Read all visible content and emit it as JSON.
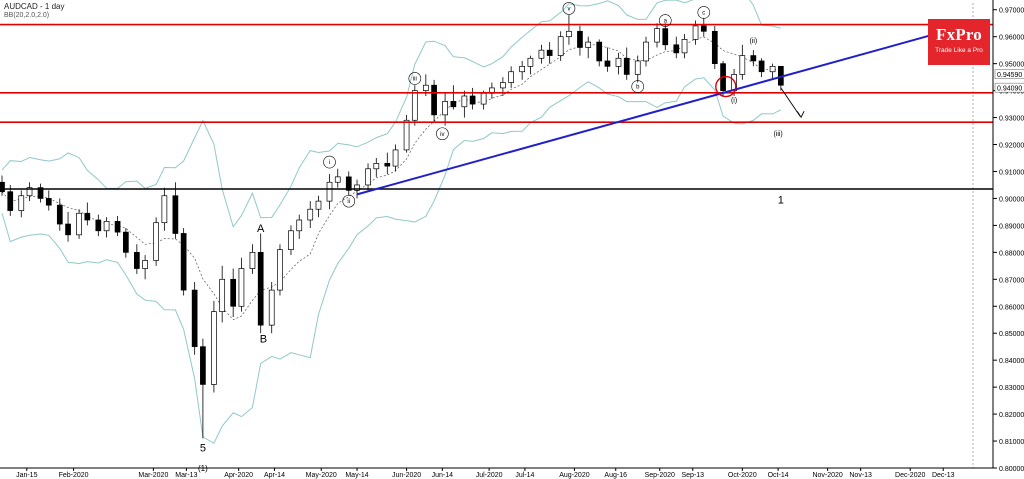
{
  "chart_data": {
    "type": "candlestick",
    "title": "AUDCAD - 1 day",
    "indicator": "BB(20,2.0,2.0)",
    "symbol": "AUDCAD",
    "timeframe": "1 day",
    "ylim": [
      0.8,
      0.9725
    ],
    "yticks": [
      "0.97000",
      "0.96000",
      "0.95000",
      "0.94000",
      "0.93000",
      "0.92000",
      "0.91000",
      "0.90000",
      "0.89000",
      "0.88000",
      "0.87000",
      "0.86000",
      "0.85000",
      "0.84000",
      "0.83000",
      "0.82000",
      "0.81000",
      "0.80000"
    ],
    "xticks": [
      "Jan-15",
      "Feb-2020",
      "Mar-2020",
      "Mar-13",
      "Apr-2020",
      "Apr-14",
      "May-2020",
      "May-14",
      "Jun-2020",
      "Jun-14",
      "Jul-2020",
      "Jul-14",
      "Aug-2020",
      "Aug-16",
      "Sep-2020",
      "Sep-13",
      "Oct-2020",
      "Oct-14",
      "Nov-2020",
      "Nov-13",
      "Dec-2020",
      "Dec-13"
    ],
    "price_labels": {
      "current": "0.94590",
      "level": "0.94090"
    },
    "horizontal_levels": [
      {
        "value": 0.9645,
        "color": "#e00000"
      },
      {
        "value": 0.9392,
        "color": "#e00000"
      },
      {
        "value": 0.9283,
        "color": "#e00000"
      },
      {
        "value": 0.9035,
        "color": "#000000"
      }
    ],
    "trendline": {
      "from": {
        "date": "2020-05-14",
        "value": 0.9015
      },
      "to": {
        "date": "2020-12-13",
        "value": 0.9618
      },
      "color": "#2020c8"
    },
    "annotations": [
      "A",
      "B",
      "5",
      "(1)",
      "i",
      "ii",
      "iii",
      "iv",
      "v",
      "a",
      "b",
      "c",
      "(i)",
      "(ii)",
      "(iii)",
      "1"
    ],
    "colors": {
      "up": "#ffffff",
      "down": "#000000",
      "bands": "#90c8c8",
      "mid": "#555555"
    },
    "candles": [
      {
        "date": "2020-01-06",
        "open": 0.906,
        "high": 0.9085,
        "low": 0.901,
        "close": 0.9025
      },
      {
        "date": "2020-01-09",
        "open": 0.9025,
        "high": 0.905,
        "low": 0.8935,
        "close": 0.8955
      },
      {
        "date": "2020-01-13",
        "open": 0.8955,
        "high": 0.903,
        "low": 0.893,
        "close": 0.901
      },
      {
        "date": "2020-01-16",
        "open": 0.901,
        "high": 0.906,
        "low": 0.899,
        "close": 0.904
      },
      {
        "date": "2020-01-20",
        "open": 0.904,
        "high": 0.9055,
        "low": 0.8985,
        "close": 0.9
      },
      {
        "date": "2020-01-23",
        "open": 0.9,
        "high": 0.903,
        "low": 0.8955,
        "close": 0.8975
      },
      {
        "date": "2020-01-27",
        "open": 0.8975,
        "high": 0.9,
        "low": 0.888,
        "close": 0.8905
      },
      {
        "date": "2020-01-30",
        "open": 0.8905,
        "high": 0.895,
        "low": 0.884,
        "close": 0.8865
      },
      {
        "date": "2020-02-03",
        "open": 0.8865,
        "high": 0.896,
        "low": 0.885,
        "close": 0.8945
      },
      {
        "date": "2020-02-06",
        "open": 0.8945,
        "high": 0.8985,
        "low": 0.89,
        "close": 0.892
      },
      {
        "date": "2020-02-10",
        "open": 0.892,
        "high": 0.894,
        "low": 0.886,
        "close": 0.888
      },
      {
        "date": "2020-02-13",
        "open": 0.888,
        "high": 0.893,
        "low": 0.8855,
        "close": 0.8915
      },
      {
        "date": "2020-02-17",
        "open": 0.8915,
        "high": 0.8935,
        "low": 0.886,
        "close": 0.8875
      },
      {
        "date": "2020-02-20",
        "open": 0.8875,
        "high": 0.889,
        "low": 0.878,
        "close": 0.88
      },
      {
        "date": "2020-02-24",
        "open": 0.88,
        "high": 0.883,
        "low": 0.872,
        "close": 0.874
      },
      {
        "date": "2020-02-27",
        "open": 0.874,
        "high": 0.879,
        "low": 0.87,
        "close": 0.877
      },
      {
        "date": "2020-03-02",
        "open": 0.877,
        "high": 0.893,
        "low": 0.875,
        "close": 0.891
      },
      {
        "date": "2020-03-05",
        "open": 0.891,
        "high": 0.904,
        "low": 0.888,
        "close": 0.901
      },
      {
        "date": "2020-03-09",
        "open": 0.901,
        "high": 0.906,
        "low": 0.885,
        "close": 0.887
      },
      {
        "date": "2020-03-12",
        "open": 0.887,
        "high": 0.889,
        "low": 0.864,
        "close": 0.866
      },
      {
        "date": "2020-03-16",
        "open": 0.866,
        "high": 0.869,
        "low": 0.842,
        "close": 0.845
      },
      {
        "date": "2020-03-19",
        "open": 0.845,
        "high": 0.848,
        "low": 0.811,
        "close": 0.831
      },
      {
        "date": "2020-03-23",
        "open": 0.831,
        "high": 0.862,
        "low": 0.828,
        "close": 0.858
      },
      {
        "date": "2020-03-26",
        "open": 0.858,
        "high": 0.875,
        "low": 0.854,
        "close": 0.87
      },
      {
        "date": "2020-03-30",
        "open": 0.87,
        "high": 0.874,
        "low": 0.856,
        "close": 0.86
      },
      {
        "date": "2020-04-02",
        "open": 0.86,
        "high": 0.878,
        "low": 0.858,
        "close": 0.874
      },
      {
        "date": "2020-04-06",
        "open": 0.874,
        "high": 0.883,
        "low": 0.872,
        "close": 0.88
      },
      {
        "date": "2020-04-09",
        "open": 0.88,
        "high": 0.887,
        "low": 0.85,
        "close": 0.853
      },
      {
        "date": "2020-04-13",
        "open": 0.853,
        "high": 0.869,
        "low": 0.85,
        "close": 0.866
      },
      {
        "date": "2020-04-16",
        "open": 0.866,
        "high": 0.883,
        "low": 0.864,
        "close": 0.881
      },
      {
        "date": "2020-04-20",
        "open": 0.881,
        "high": 0.89,
        "low": 0.879,
        "close": 0.888
      },
      {
        "date": "2020-04-23",
        "open": 0.888,
        "high": 0.894,
        "low": 0.885,
        "close": 0.892
      },
      {
        "date": "2020-04-27",
        "open": 0.892,
        "high": 0.899,
        "low": 0.889,
        "close": 0.896
      },
      {
        "date": "2020-04-30",
        "open": 0.896,
        "high": 0.901,
        "low": 0.893,
        "close": 0.899
      },
      {
        "date": "2020-05-04",
        "open": 0.899,
        "high": 0.909,
        "low": 0.896,
        "close": 0.906
      },
      {
        "date": "2020-05-07",
        "open": 0.906,
        "high": 0.911,
        "low": 0.904,
        "close": 0.908
      },
      {
        "date": "2020-05-11",
        "open": 0.908,
        "high": 0.91,
        "low": 0.901,
        "close": 0.903
      },
      {
        "date": "2020-05-14",
        "open": 0.903,
        "high": 0.907,
        "low": 0.9,
        "close": 0.905
      },
      {
        "date": "2020-05-18",
        "open": 0.905,
        "high": 0.913,
        "low": 0.903,
        "close": 0.911
      },
      {
        "date": "2020-05-21",
        "open": 0.911,
        "high": 0.915,
        "low": 0.908,
        "close": 0.913
      },
      {
        "date": "2020-05-25",
        "open": 0.913,
        "high": 0.917,
        "low": 0.909,
        "close": 0.912
      },
      {
        "date": "2020-05-28",
        "open": 0.912,
        "high": 0.92,
        "low": 0.91,
        "close": 0.918
      },
      {
        "date": "2020-06-01",
        "open": 0.918,
        "high": 0.931,
        "low": 0.917,
        "close": 0.929
      },
      {
        "date": "2020-06-04",
        "open": 0.929,
        "high": 0.942,
        "low": 0.927,
        "close": 0.94
      },
      {
        "date": "2020-06-08",
        "open": 0.94,
        "high": 0.946,
        "low": 0.938,
        "close": 0.942
      },
      {
        "date": "2020-06-11",
        "open": 0.942,
        "high": 0.944,
        "low": 0.928,
        "close": 0.931
      },
      {
        "date": "2020-06-15",
        "open": 0.931,
        "high": 0.939,
        "low": 0.927,
        "close": 0.936
      },
      {
        "date": "2020-06-18",
        "open": 0.936,
        "high": 0.942,
        "low": 0.933,
        "close": 0.934
      },
      {
        "date": "2020-06-22",
        "open": 0.934,
        "high": 0.94,
        "low": 0.93,
        "close": 0.938
      },
      {
        "date": "2020-06-25",
        "open": 0.938,
        "high": 0.941,
        "low": 0.933,
        "close": 0.935
      },
      {
        "date": "2020-06-29",
        "open": 0.935,
        "high": 0.94,
        "low": 0.933,
        "close": 0.939
      },
      {
        "date": "2020-07-02",
        "open": 0.939,
        "high": 0.943,
        "low": 0.937,
        "close": 0.941
      },
      {
        "date": "2020-07-06",
        "open": 0.941,
        "high": 0.945,
        "low": 0.938,
        "close": 0.943
      },
      {
        "date": "2020-07-09",
        "open": 0.943,
        "high": 0.949,
        "low": 0.941,
        "close": 0.947
      },
      {
        "date": "2020-07-13",
        "open": 0.947,
        "high": 0.951,
        "low": 0.944,
        "close": 0.949
      },
      {
        "date": "2020-07-16",
        "open": 0.949,
        "high": 0.953,
        "low": 0.946,
        "close": 0.952
      },
      {
        "date": "2020-07-20",
        "open": 0.952,
        "high": 0.957,
        "low": 0.95,
        "close": 0.955
      },
      {
        "date": "2020-07-23",
        "open": 0.955,
        "high": 0.958,
        "low": 0.95,
        "close": 0.953
      },
      {
        "date": "2020-07-27",
        "open": 0.953,
        "high": 0.962,
        "low": 0.951,
        "close": 0.96
      },
      {
        "date": "2020-07-30",
        "open": 0.96,
        "high": 0.968,
        "low": 0.957,
        "close": 0.962
      },
      {
        "date": "2020-08-03",
        "open": 0.962,
        "high": 0.964,
        "low": 0.953,
        "close": 0.956
      },
      {
        "date": "2020-08-06",
        "open": 0.956,
        "high": 0.96,
        "low": 0.952,
        "close": 0.958
      },
      {
        "date": "2020-08-10",
        "open": 0.958,
        "high": 0.959,
        "low": 0.949,
        "close": 0.951
      },
      {
        "date": "2020-08-13",
        "open": 0.951,
        "high": 0.956,
        "low": 0.947,
        "close": 0.949
      },
      {
        "date": "2020-08-17",
        "open": 0.949,
        "high": 0.954,
        "low": 0.946,
        "close": 0.952
      },
      {
        "date": "2020-08-20",
        "open": 0.952,
        "high": 0.956,
        "low": 0.944,
        "close": 0.946
      },
      {
        "date": "2020-08-24",
        "open": 0.946,
        "high": 0.953,
        "low": 0.943,
        "close": 0.951
      },
      {
        "date": "2020-08-27",
        "open": 0.951,
        "high": 0.96,
        "low": 0.949,
        "close": 0.958
      },
      {
        "date": "2020-08-31",
        "open": 0.958,
        "high": 0.965,
        "low": 0.956,
        "close": 0.963
      },
      {
        "date": "2020-09-03",
        "open": 0.963,
        "high": 0.965,
        "low": 0.955,
        "close": 0.957
      },
      {
        "date": "2020-09-07",
        "open": 0.957,
        "high": 0.96,
        "low": 0.952,
        "close": 0.954
      },
      {
        "date": "2020-09-10",
        "open": 0.954,
        "high": 0.961,
        "low": 0.952,
        "close": 0.959
      },
      {
        "date": "2020-09-14",
        "open": 0.959,
        "high": 0.966,
        "low": 0.957,
        "close": 0.964
      },
      {
        "date": "2020-09-17",
        "open": 0.964,
        "high": 0.967,
        "low": 0.96,
        "close": 0.962
      },
      {
        "date": "2020-09-21",
        "open": 0.962,
        "high": 0.964,
        "low": 0.948,
        "close": 0.95
      },
      {
        "date": "2020-09-24",
        "open": 0.95,
        "high": 0.951,
        "low": 0.938,
        "close": 0.94
      },
      {
        "date": "2020-09-28",
        "open": 0.94,
        "high": 0.948,
        "low": 0.938,
        "close": 0.946
      },
      {
        "date": "2020-10-01",
        "open": 0.946,
        "high": 0.957,
        "low": 0.944,
        "close": 0.953
      },
      {
        "date": "2020-10-05",
        "open": 0.953,
        "high": 0.955,
        "low": 0.949,
        "close": 0.951
      },
      {
        "date": "2020-10-08",
        "open": 0.951,
        "high": 0.952,
        "low": 0.945,
        "close": 0.947
      },
      {
        "date": "2020-10-12",
        "open": 0.947,
        "high": 0.95,
        "low": 0.944,
        "close": 0.949
      },
      {
        "date": "2020-10-15",
        "open": 0.949,
        "high": 0.949,
        "low": 0.94,
        "close": 0.942
      }
    ]
  }
}
